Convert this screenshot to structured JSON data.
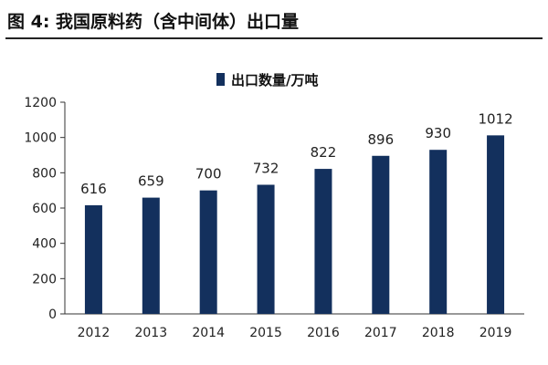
{
  "figure": {
    "title": "图 4:  我国原料药（含中间体）出口量"
  },
  "colors": {
    "bar": "#13305d",
    "axis": "#333333"
  },
  "chart_data": {
    "type": "bar",
    "title": "",
    "xlabel": "",
    "ylabel": "",
    "categories": [
      "2012",
      "2013",
      "2014",
      "2015",
      "2016",
      "2017",
      "2018",
      "2019"
    ],
    "series": [
      {
        "name": "出口数量/万吨",
        "values": [
          616,
          659,
          700,
          732,
          822,
          896,
          930,
          1012
        ]
      }
    ],
    "ylim": [
      0,
      1200
    ],
    "yticks": [
      0,
      200,
      400,
      600,
      800,
      1000,
      1200
    ],
    "grid": false,
    "legend": "top-center",
    "data_labels": true
  }
}
